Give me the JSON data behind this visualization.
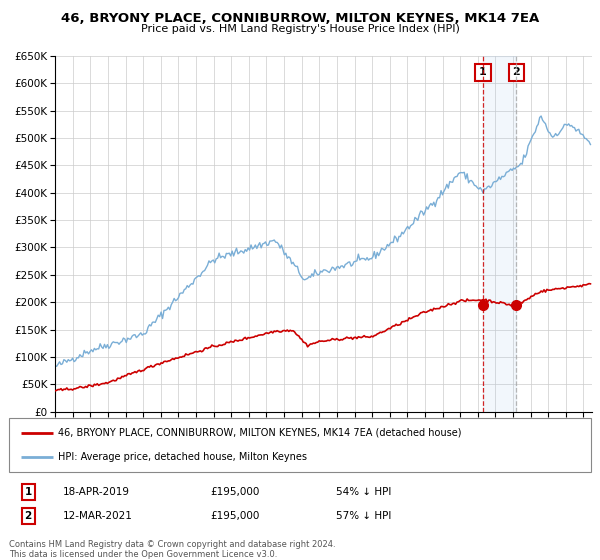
{
  "title": "46, BRYONY PLACE, CONNIBURROW, MILTON KEYNES, MK14 7EA",
  "subtitle": "Price paid vs. HM Land Registry's House Price Index (HPI)",
  "legend_line1": "46, BRYONY PLACE, CONNIBURROW, MILTON KEYNES, MK14 7EA (detached house)",
  "legend_line2": "HPI: Average price, detached house, Milton Keynes",
  "red_color": "#cc0000",
  "blue_color": "#7aaed6",
  "annotation1_date": "18-APR-2019",
  "annotation1_price": "£195,000",
  "annotation1_hpi": "54% ↓ HPI",
  "annotation2_date": "12-MAR-2021",
  "annotation2_price": "£195,000",
  "annotation2_hpi": "57% ↓ HPI",
  "footer": "Contains HM Land Registry data © Crown copyright and database right 2024.\nThis data is licensed under the Open Government Licence v3.0.",
  "ylim": [
    0,
    650000
  ],
  "xlim_start": 1995.0,
  "xlim_end": 2025.5,
  "sale1_x": 2019.29,
  "sale1_y": 195000,
  "sale2_x": 2021.19,
  "sale2_y": 195000,
  "highlight_start": 2019.29,
  "highlight_end": 2021.19,
  "bg_color": "#f8f8f8"
}
